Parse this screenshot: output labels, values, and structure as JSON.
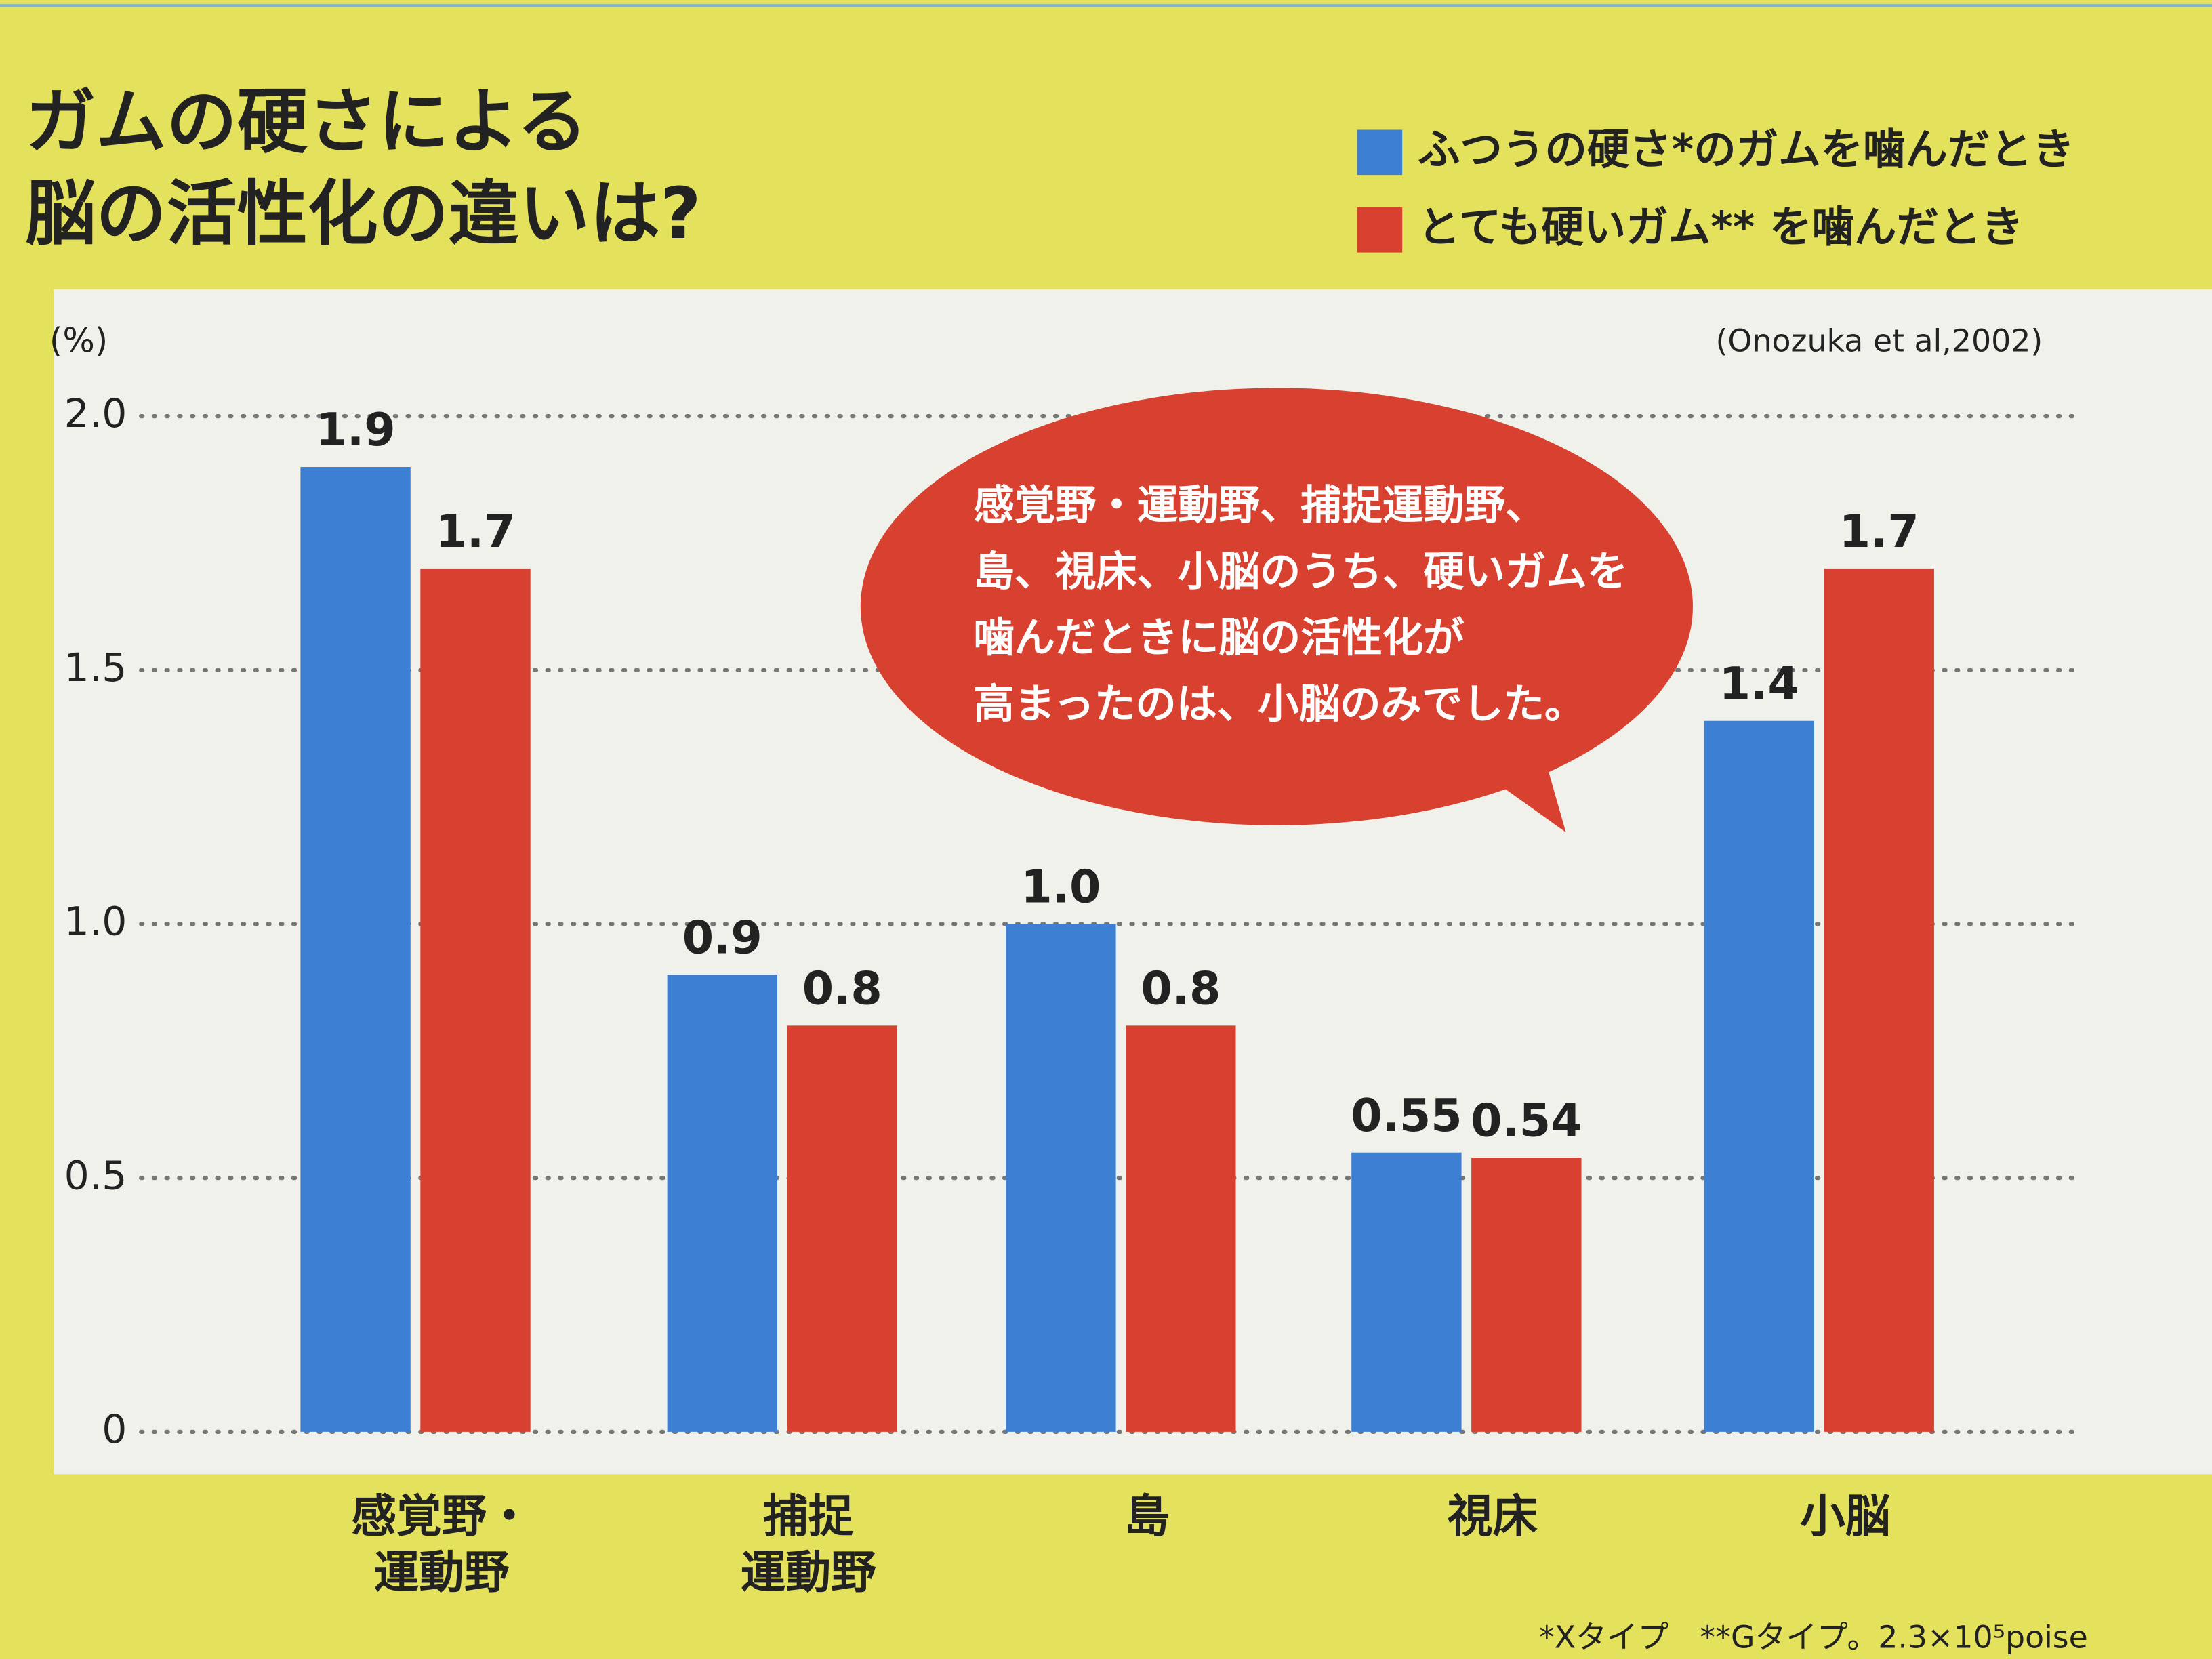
{
  "chart_data": {
    "type": "bar",
    "title": [
      "ガムの硬さによる",
      "脳の活性化の違いは?"
    ],
    "y_label": "(%)",
    "source": "(Onozuka et al,2002)",
    "annotation": [
      "感覚野・運動野、捕捉運動野、",
      "島、視床、小脳のうち、硬いガムを",
      "噛んだときに脳の活性化が",
      "高まったのは、小脳のみでした。"
    ],
    "categories": [
      [
        "感覚野・",
        "運動野"
      ],
      [
        "捕捉",
        "運動野"
      ],
      [
        "島"
      ],
      [
        "視床"
      ],
      [
        "小脳"
      ]
    ],
    "series": [
      {
        "name": "ふつうの硬さ*のガムを噛んだとき",
        "color": "#3d7fd2",
        "values": [
          1.9,
          0.9,
          1.0,
          0.55,
          1.4
        ],
        "value_labels": [
          "1.9",
          "0.9",
          "1.0",
          "0.55",
          "1.4"
        ]
      },
      {
        "name": "とても硬いガム** を噛んだとき",
        "color": "#d8412f",
        "values": [
          1.7,
          0.8,
          0.8,
          0.54,
          1.7
        ]
      }
    ],
    "ylim": [
      0,
      2.2
    ],
    "yticks": [
      0,
      0.5,
      {
        "value": 1,
        "label": "1.0"
      },
      1.5,
      {
        "value": 2,
        "label": "2.0"
      }
    ],
    "grid": true,
    "footnote": "*Xタイプ　**Gタイプ。2.3×10⁵poise"
  }
}
